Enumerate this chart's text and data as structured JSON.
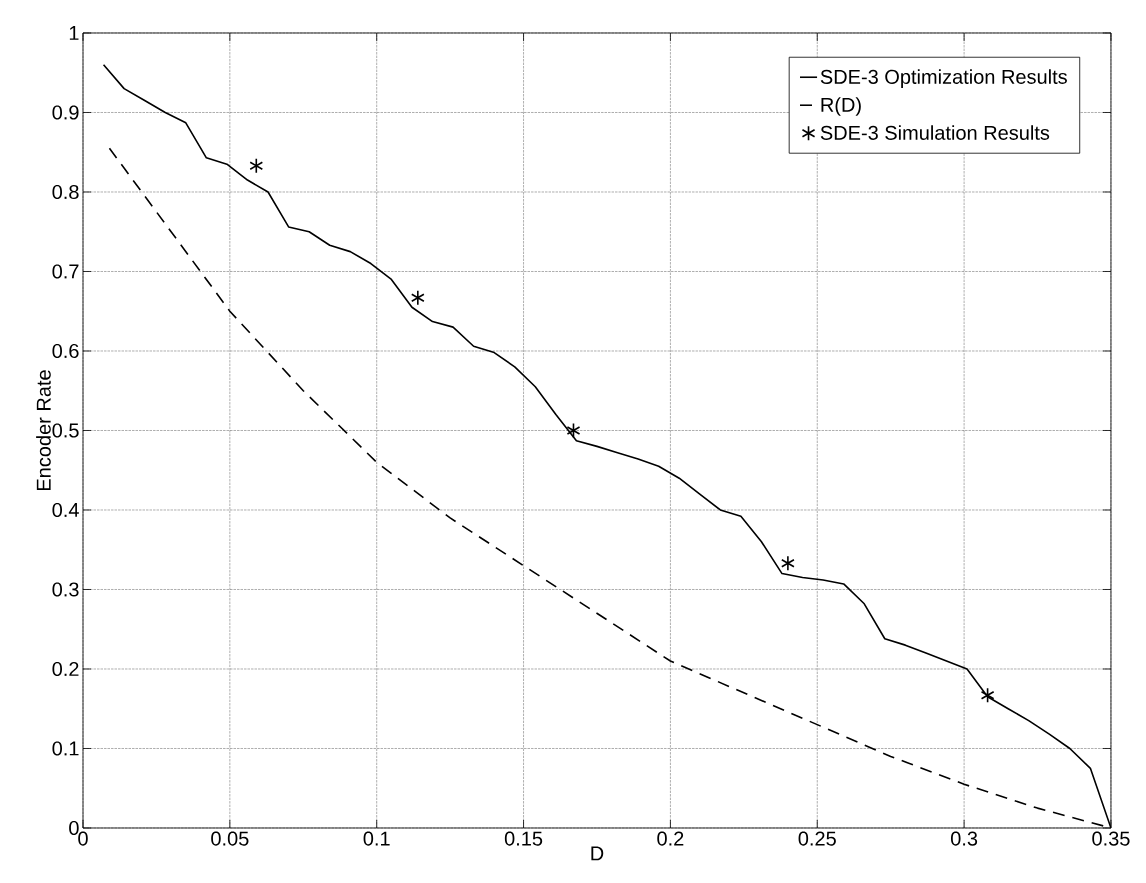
{
  "chart_data": {
    "type": "line",
    "xlabel": "D",
    "ylabel": "Encoder Rate",
    "xlim": [
      0,
      0.35
    ],
    "ylim": [
      0,
      1
    ],
    "xticks": [
      0,
      0.05,
      0.1,
      0.15,
      0.2,
      0.25,
      0.3,
      0.35
    ],
    "yticks": [
      0,
      0.1,
      0.2,
      0.3,
      0.4,
      0.5,
      0.6,
      0.7,
      0.8,
      0.9,
      1
    ],
    "grid": true,
    "legend": "top right",
    "series": [
      {
        "name": "SDE-3 Optimization Results",
        "color": "#000000",
        "line_style": "solid",
        "marker": "none",
        "x": [
          0.007,
          0.014,
          0.021,
          0.028,
          0.035,
          0.042,
          0.049,
          0.056,
          0.063,
          0.07,
          0.077,
          0.084,
          0.091,
          0.098,
          0.105,
          0.112,
          0.119,
          0.126,
          0.133,
          0.14,
          0.147,
          0.154,
          0.161,
          0.168,
          0.175,
          0.182,
          0.189,
          0.196,
          0.203,
          0.21,
          0.217,
          0.224,
          0.231,
          0.238,
          0.245,
          0.252,
          0.259,
          0.266,
          0.273,
          0.28,
          0.287,
          0.294,
          0.301,
          0.308,
          0.315,
          0.322,
          0.329,
          0.336,
          0.343,
          0.35
        ],
        "values": [
          0.96,
          0.93,
          0.915,
          0.9,
          0.887,
          0.843,
          0.835,
          0.815,
          0.8,
          0.756,
          0.75,
          0.733,
          0.725,
          0.71,
          0.69,
          0.655,
          0.637,
          0.63,
          0.606,
          0.598,
          0.58,
          0.555,
          0.52,
          0.487,
          0.48,
          0.472,
          0.464,
          0.455,
          0.44,
          0.42,
          0.4,
          0.392,
          0.36,
          0.32,
          0.315,
          0.312,
          0.307,
          0.282,
          0.238,
          0.23,
          0.22,
          0.21,
          0.2,
          0.165,
          0.15,
          0.135,
          0.118,
          0.1,
          0.075,
          0.0
        ]
      },
      {
        "name": "R(D)",
        "color": "#000000",
        "line_style": "dashed",
        "marker": "none",
        "x": [
          0.009,
          0.02,
          0.03,
          0.05,
          0.075,
          0.1,
          0.125,
          0.15,
          0.175,
          0.2,
          0.225,
          0.25,
          0.275,
          0.3,
          0.325,
          0.35
        ],
        "values": [
          0.855,
          0.8,
          0.75,
          0.65,
          0.55,
          0.46,
          0.39,
          0.33,
          0.27,
          0.21,
          0.17,
          0.13,
          0.09,
          0.055,
          0.025,
          0.0
        ]
      },
      {
        "name": "SDE-3 Simulation Results",
        "color": "#000000",
        "type": "scatter",
        "marker": "cross",
        "x": [
          0.059,
          0.114,
          0.167,
          0.24,
          0.308
        ],
        "values": [
          0.833,
          0.667,
          0.5,
          0.333,
          0.167
        ]
      }
    ]
  }
}
